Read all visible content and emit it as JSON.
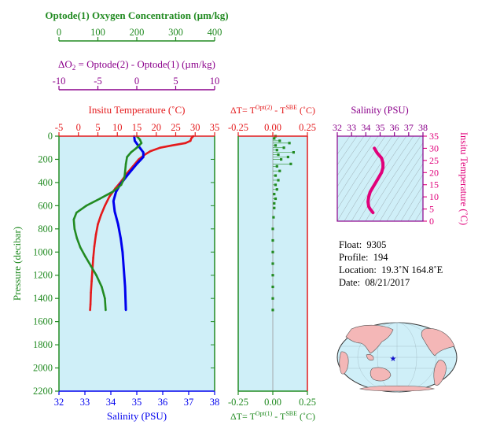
{
  "colors": {
    "green": "#228B22",
    "purple": "#8B008B",
    "red": "#E41A1C",
    "blue": "#0000EE",
    "magenta": "#E0007A",
    "panel_bg": "#CFEFF8",
    "land": "#F4B7B7",
    "float_marker": "#1010CC"
  },
  "axes": {
    "oxygen": {
      "title": "Optode(1) Oxygen Concentration (µm/kg)",
      "range": [
        0,
        400
      ],
      "ticks": [
        "0",
        "100",
        "200",
        "300",
        "400"
      ]
    },
    "delta_o2": {
      "title_prefix": "ΔO",
      "title_sub": "2",
      "title_rest": " = Optode(2) - Optode(1)   (µm/kg)",
      "range": [
        -10,
        10
      ],
      "ticks": [
        "-10",
        "-5",
        "0",
        "5",
        "10"
      ]
    },
    "temperature": {
      "title": "Insitu Temperature (˚C)",
      "range": [
        -5,
        35
      ],
      "ticks": [
        "-5",
        "0",
        "5",
        "10",
        "15",
        "20",
        "25",
        "30",
        "35"
      ]
    },
    "salinity": {
      "title": "Salinity (PSU)",
      "range": [
        32,
        38
      ],
      "ticks": [
        "32",
        "33",
        "34",
        "35",
        "36",
        "37",
        "38"
      ]
    },
    "pressure": {
      "title": "Pressure (decibar)",
      "range": [
        0,
        2200
      ],
      "ticks": [
        "0",
        "200",
        "400",
        "600",
        "800",
        "1000",
        "1200",
        "1400",
        "1600",
        "1800",
        "2000",
        "2200"
      ]
    },
    "delta_t_top": {
      "title_prefix": "ΔT= T",
      "title_sup1": "Opt(2)",
      "title_mid": " - T",
      "title_sup2": "SBE",
      "title_unit": " (˚C)",
      "range": [
        -0.25,
        0.25
      ],
      "ticks": [
        "-0.25",
        "0.00",
        "0.25"
      ]
    },
    "delta_t_bottom": {
      "title_prefix": "ΔT= T",
      "title_sup1": "Opt(1)",
      "title_mid": " - T",
      "title_sup2": "SBE",
      "title_unit": " (˚C)",
      "range": [
        -0.25,
        0.25
      ],
      "ticks": [
        "-0.25",
        "0.00",
        "0.25"
      ]
    },
    "ts_salinity": {
      "title": "Salinity (PSU)",
      "range": [
        32,
        38
      ],
      "ticks": [
        "32",
        "33",
        "34",
        "35",
        "36",
        "37",
        "38"
      ]
    },
    "ts_temperature": {
      "title": "Insitu Temperature (˚C)",
      "range": [
        0,
        35
      ],
      "ticks": [
        "0",
        "5",
        "10",
        "15",
        "20",
        "25",
        "30",
        "35"
      ]
    }
  },
  "info": {
    "float_label": "Float:",
    "float_value": "9305",
    "profile_label": "Profile:",
    "profile_value": "194",
    "location_label": "Location:",
    "location_value": "19.3˚N  164.8˚E",
    "date_label": "Date:",
    "date_value": "08/21/2017"
  },
  "map": {
    "float_lat": 19.3,
    "float_lon": 164.8
  },
  "chart_data": [
    {
      "type": "line",
      "panel": "profiles",
      "series": [
        {
          "quantity": "temperature",
          "color": "red",
          "points": [
            [
              29.5,
              0
            ],
            [
              29.0,
              20
            ],
            [
              28.8,
              40
            ],
            [
              27.5,
              60
            ],
            [
              24,
              80
            ],
            [
              21,
              100
            ],
            [
              18.5,
              130
            ],
            [
              17,
              160
            ],
            [
              15.5,
              200
            ],
            [
              14,
              260
            ],
            [
              12.5,
              320
            ],
            [
              11,
              390
            ],
            [
              9.5,
              450
            ],
            [
              8,
              520
            ],
            [
              6.8,
              600
            ],
            [
              5.8,
              680
            ],
            [
              5.0,
              760
            ],
            [
              4.5,
              850
            ],
            [
              4.1,
              950
            ],
            [
              3.8,
              1050
            ],
            [
              3.6,
              1150
            ],
            [
              3.4,
              1250
            ],
            [
              3.2,
              1350
            ],
            [
              3.1,
              1450
            ],
            [
              3.0,
              1500
            ]
          ]
        },
        {
          "quantity": "salinity",
          "color": "blue",
          "points": [
            [
              34.9,
              0
            ],
            [
              34.92,
              40
            ],
            [
              35.05,
              80
            ],
            [
              35.25,
              140
            ],
            [
              35.25,
              180
            ],
            [
              35.0,
              240
            ],
            [
              34.7,
              320
            ],
            [
              34.35,
              420
            ],
            [
              34.2,
              480
            ],
            [
              34.1,
              560
            ],
            [
              34.15,
              650
            ],
            [
              34.28,
              760
            ],
            [
              34.38,
              880
            ],
            [
              34.45,
              1000
            ],
            [
              34.5,
              1150
            ],
            [
              34.55,
              1300
            ],
            [
              34.58,
              1500
            ]
          ]
        },
        {
          "quantity": "oxygen",
          "color": "green",
          "points": [
            [
              200,
              0
            ],
            [
              208,
              30
            ],
            [
              212,
              60
            ],
            [
              200,
              100
            ],
            [
              185,
              140
            ],
            [
              175,
              180
            ],
            [
              172,
              240
            ],
            [
              170,
              300
            ],
            [
              168,
              360
            ],
            [
              160,
              420
            ],
            [
              138,
              480
            ],
            [
              105,
              540
            ],
            [
              70,
              600
            ],
            [
              45,
              660
            ],
            [
              38,
              720
            ],
            [
              40,
              800
            ],
            [
              46,
              880
            ],
            [
              55,
              960
            ],
            [
              68,
              1040
            ],
            [
              82,
              1120
            ],
            [
              96,
              1200
            ],
            [
              110,
              1300
            ],
            [
              118,
              1400
            ],
            [
              120,
              1500
            ]
          ]
        }
      ]
    },
    {
      "type": "scatter",
      "panel": "delta_t",
      "x_label": "ΔT (˚C)",
      "points": [
        [
          0.02,
          0
        ],
        [
          0.01,
          20
        ],
        [
          0.05,
          40
        ],
        [
          0.12,
          60
        ],
        [
          0.02,
          80
        ],
        [
          0.08,
          100
        ],
        [
          0.03,
          120
        ],
        [
          0.15,
          140
        ],
        [
          0.04,
          160
        ],
        [
          0.11,
          180
        ],
        [
          0.06,
          200
        ],
        [
          0.13,
          240
        ],
        [
          0.03,
          260
        ],
        [
          0.05,
          300
        ],
        [
          0.02,
          340
        ],
        [
          0.04,
          380
        ],
        [
          0.02,
          420
        ],
        [
          0.03,
          460
        ],
        [
          0.01,
          500
        ],
        [
          0.02,
          540
        ],
        [
          0.01,
          580
        ],
        [
          0.01,
          620
        ],
        [
          0.005,
          700
        ],
        [
          0.0,
          800
        ],
        [
          0.0,
          900
        ],
        [
          0.0,
          1000
        ],
        [
          0.0,
          1100
        ],
        [
          0.0,
          1200
        ],
        [
          0.0,
          1300
        ],
        [
          0.0,
          1400
        ],
        [
          0.0,
          1500
        ]
      ]
    },
    {
      "type": "line",
      "panel": "ts_diagram",
      "x_label": "Salinity (PSU)",
      "y_label": "Insitu Temperature (˚C)",
      "points": [
        [
          34.6,
          30
        ],
        [
          34.8,
          28
        ],
        [
          35.1,
          26
        ],
        [
          35.2,
          24
        ],
        [
          35.2,
          22
        ],
        [
          35.1,
          20
        ],
        [
          34.9,
          18
        ],
        [
          34.7,
          16
        ],
        [
          34.5,
          14
        ],
        [
          34.3,
          12
        ],
        [
          34.2,
          10
        ],
        [
          34.15,
          8
        ],
        [
          34.2,
          6
        ],
        [
          34.3,
          5
        ],
        [
          34.5,
          3.5
        ]
      ]
    }
  ]
}
